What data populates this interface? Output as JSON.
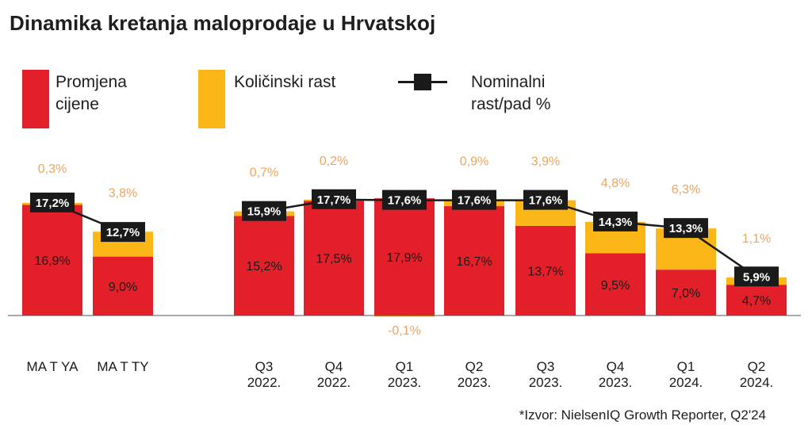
{
  "title": "Dinamika kretanja maloprodaje u Hrvatskoj",
  "legend": {
    "price": "Promjena cijene",
    "price_line1": "Promjena",
    "price_line2": "cijene",
    "volume": "Količinski rast",
    "nominal": "Nominalni rast/pad %",
    "nominal_line1": "Nominalni",
    "nominal_line2": "rast/pad %"
  },
  "source": "*Izvor: NielsenIQ Growth Reporter, Q2'24",
  "colors": {
    "price": "#e3202a",
    "volume": "#fbb617",
    "line": "#1a1a1a",
    "volume_label": "#f0a45a"
  },
  "chart_data": {
    "type": "bar",
    "stacked": true,
    "title": "Dinamika kretanja maloprodaje u Hrvatskoj",
    "categories": [
      [
        "MA T YA"
      ],
      [
        "MA T TY"
      ],
      [
        "Q3",
        "2022."
      ],
      [
        "Q4",
        "2022."
      ],
      [
        "Q1",
        "2023."
      ],
      [
        "Q2",
        "2023."
      ],
      [
        "Q3",
        "2023."
      ],
      [
        "Q4",
        "2023."
      ],
      [
        "Q1",
        "2024."
      ],
      [
        "Q2",
        "2024."
      ]
    ],
    "series": [
      {
        "name": "Promjena cijene",
        "values": [
          16.9,
          9.0,
          15.2,
          17.5,
          17.9,
          16.7,
          13.7,
          9.5,
          7.0,
          4.7
        ],
        "labels": [
          "16,9%",
          "9,0%",
          "15,2%",
          "17,5%",
          "17,9%",
          "16,7%",
          "13,7%",
          "9,5%",
          "7,0%",
          "4,7%"
        ]
      },
      {
        "name": "Količinski rast",
        "values": [
          0.3,
          3.8,
          0.7,
          0.2,
          -0.1,
          0.9,
          3.9,
          4.8,
          6.3,
          1.1
        ],
        "labels": [
          "0,3%",
          "3,8%",
          "0,7%",
          "0,2%",
          "-0,1%",
          "0,9%",
          "3,9%",
          "4,8%",
          "6,3%",
          "1,1%"
        ]
      },
      {
        "name": "Nominalni rast/pad %",
        "type": "line",
        "values": [
          17.2,
          12.7,
          15.9,
          17.7,
          17.6,
          17.6,
          17.6,
          14.3,
          13.3,
          5.9
        ],
        "labels": [
          "17,2%",
          "12,7%",
          "15,9%",
          "17,7%",
          "17,6%",
          "17,6%",
          "17,6%",
          "14,3%",
          "13,3%",
          "5,9%"
        ]
      }
    ],
    "line_groups": [
      [
        0,
        1
      ],
      [
        2,
        3,
        4,
        5,
        6,
        7,
        8,
        9
      ]
    ]
  }
}
